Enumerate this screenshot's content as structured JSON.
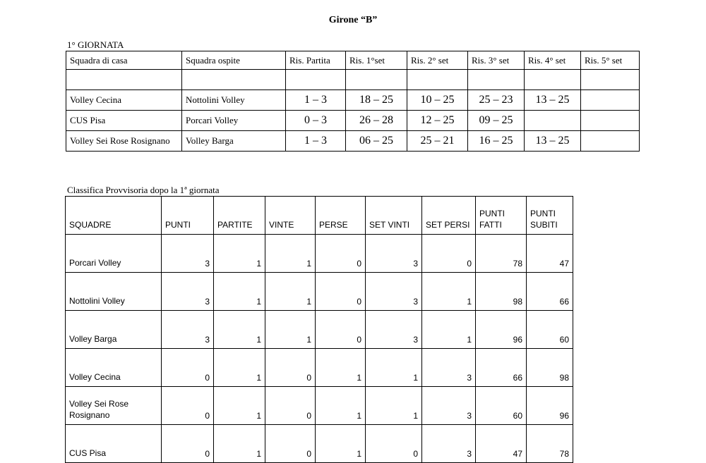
{
  "title": "Girone “B”",
  "giornata_label": "1° GIORNATA",
  "results": {
    "headers": [
      "Squadra di casa",
      "Squadra ospite",
      "Ris. Partita",
      "Ris. 1°set",
      "Ris. 2° set",
      "Ris. 3° set",
      "Ris. 4° set",
      "Ris. 5° set"
    ],
    "rows": [
      [
        "",
        "",
        "",
        "",
        "",
        "",
        "",
        ""
      ],
      [
        "Volley Cecina",
        "Nottolini Volley",
        "1 – 3",
        "18 – 25",
        "10 – 25",
        "25 – 23",
        "13 – 25",
        ""
      ],
      [
        "CUS Pisa",
        "Porcari Volley",
        "0 – 3",
        "26 – 28",
        "12 – 25",
        "09 – 25",
        "",
        ""
      ],
      [
        "Volley Sei Rose Rosignano",
        "Volley Barga",
        "1 – 3",
        "06 – 25",
        "25 – 21",
        "16 – 25",
        "13 – 25",
        ""
      ]
    ]
  },
  "classifica_label": "Classifica Provvisoria dopo la 1ª giornata",
  "standings": {
    "headers": [
      "SQUADRE",
      "PUNTI",
      "PARTITE",
      "VINTE",
      "PERSE",
      "SET VINTI",
      "SET PERSI",
      "PUNTI FATTI",
      "PUNTI SUBITI"
    ],
    "rows": [
      [
        "Porcari Volley",
        "3",
        "1",
        "1",
        "0",
        "3",
        "0",
        "78",
        "47"
      ],
      [
        "Nottolini Volley",
        "3",
        "1",
        "1",
        "0",
        "3",
        "1",
        "98",
        "66"
      ],
      [
        "Volley Barga",
        "3",
        "1",
        "1",
        "0",
        "3",
        "1",
        "96",
        "60"
      ],
      [
        "Volley Cecina",
        "0",
        "1",
        "0",
        "1",
        "1",
        "3",
        "66",
        "98"
      ],
      [
        "Volley Sei Rose Rosignano",
        "0",
        "1",
        "0",
        "1",
        "1",
        "3",
        "60",
        "96"
      ],
      [
        "CUS Pisa",
        "0",
        "1",
        "0",
        "1",
        "0",
        "3",
        "47",
        "78"
      ]
    ]
  }
}
